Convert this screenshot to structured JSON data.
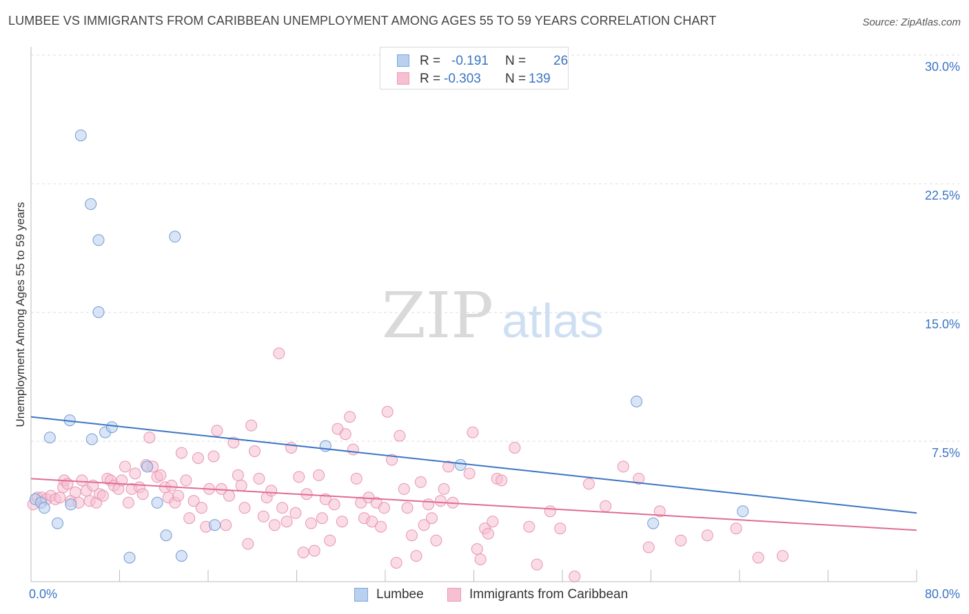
{
  "title": "LUMBEE VS IMMIGRANTS FROM CARIBBEAN UNEMPLOYMENT AMONG AGES 55 TO 59 YEARS CORRELATION CHART",
  "source": "Source: ZipAtlas.com",
  "watermark": {
    "part1": "ZIP",
    "part2": "atlas"
  },
  "legend": {
    "rows": [
      {
        "r_label": "R =",
        "r_value": "-0.191",
        "n_label": "N =",
        "n_value": "26"
      },
      {
        "r_label": "R =",
        "r_value": "-0.303",
        "n_label": "N =",
        "n_value": "139"
      }
    ]
  },
  "colors": {
    "blue": "#3a74c4",
    "blue_fill": "#b9d0ef",
    "pink": "#e06b94",
    "pink_fill": "#f6c0d2",
    "grid": "#dddddd"
  },
  "chart_data": {
    "type": "scatter",
    "xlabel": "",
    "ylabel": "Unemployment Among Ages 55 to 59 years",
    "xlim": [
      0,
      80
    ],
    "ylim": [
      0,
      30
    ],
    "x_tick_labels": [
      "0.0%",
      "80.0%"
    ],
    "y_ticks": [
      7.5,
      15.0,
      22.5,
      30.0
    ],
    "y_tick_labels": [
      "7.5%",
      "15.0%",
      "22.5%",
      "30.0%"
    ],
    "grid": true,
    "series": [
      {
        "name": "Lumbee",
        "color": "#3a74c4",
        "trend": {
          "x": [
            0,
            80
          ],
          "y": [
            9.6,
            4.0
          ]
        },
        "points": [
          [
            0.4,
            4.8
          ],
          [
            0.9,
            4.6
          ],
          [
            1.2,
            4.3
          ],
          [
            1.7,
            8.4
          ],
          [
            2.4,
            3.4
          ],
          [
            3.5,
            9.4
          ],
          [
            3.6,
            4.5
          ],
          [
            4.5,
            26.0
          ],
          [
            5.4,
            22.0
          ],
          [
            5.5,
            8.3
          ],
          [
            6.1,
            19.9
          ],
          [
            6.1,
            15.7
          ],
          [
            6.7,
            8.7
          ],
          [
            7.3,
            9.0
          ],
          [
            8.9,
            1.4
          ],
          [
            10.5,
            6.7
          ],
          [
            11.4,
            4.6
          ],
          [
            12.2,
            2.7
          ],
          [
            13.0,
            20.1
          ],
          [
            13.6,
            1.5
          ],
          [
            16.6,
            3.3
          ],
          [
            26.6,
            7.9
          ],
          [
            38.8,
            6.8
          ],
          [
            54.7,
            10.5
          ],
          [
            56.2,
            3.4
          ],
          [
            64.3,
            4.1
          ]
        ]
      },
      {
        "name": "Immigrants from Caribbean",
        "color": "#e06b94",
        "trend": {
          "x": [
            0,
            80
          ],
          "y": [
            6.0,
            3.0
          ]
        },
        "points": [
          [
            0.2,
            4.5
          ],
          [
            0.6,
            4.9
          ],
          [
            1.0,
            4.9
          ],
          [
            1.4,
            4.8
          ],
          [
            1.8,
            5.0
          ],
          [
            2.2,
            4.8
          ],
          [
            2.6,
            4.9
          ],
          [
            2.9,
            5.5
          ],
          [
            3.0,
            5.9
          ],
          [
            3.3,
            5.7
          ],
          [
            3.6,
            4.7
          ],
          [
            4.0,
            5.2
          ],
          [
            4.3,
            4.6
          ],
          [
            4.6,
            5.9
          ],
          [
            5.0,
            5.3
          ],
          [
            5.3,
            4.7
          ],
          [
            5.6,
            5.6
          ],
          [
            5.9,
            4.6
          ],
          [
            6.2,
            5.1
          ],
          [
            6.5,
            5.0
          ],
          [
            6.9,
            6.0
          ],
          [
            7.2,
            5.9
          ],
          [
            7.5,
            5.6
          ],
          [
            7.9,
            5.4
          ],
          [
            8.2,
            5.9
          ],
          [
            8.5,
            6.7
          ],
          [
            8.8,
            4.6
          ],
          [
            9.1,
            5.4
          ],
          [
            9.4,
            6.3
          ],
          [
            9.8,
            5.5
          ],
          [
            10.1,
            5.1
          ],
          [
            10.4,
            6.8
          ],
          [
            10.7,
            8.4
          ],
          [
            11.0,
            6.7
          ],
          [
            11.4,
            6.1
          ],
          [
            11.7,
            6.2
          ],
          [
            12.1,
            5.5
          ],
          [
            12.4,
            4.9
          ],
          [
            12.7,
            5.6
          ],
          [
            13.0,
            4.6
          ],
          [
            13.3,
            5.0
          ],
          [
            13.6,
            7.5
          ],
          [
            14.0,
            5.9
          ],
          [
            14.3,
            3.7
          ],
          [
            14.7,
            4.7
          ],
          [
            15.1,
            7.2
          ],
          [
            15.4,
            4.3
          ],
          [
            15.8,
            3.2
          ],
          [
            16.1,
            5.4
          ],
          [
            16.5,
            7.3
          ],
          [
            16.8,
            8.8
          ],
          [
            17.2,
            5.4
          ],
          [
            17.6,
            3.3
          ],
          [
            17.9,
            5.0
          ],
          [
            18.3,
            8.1
          ],
          [
            18.7,
            6.2
          ],
          [
            19.0,
            5.6
          ],
          [
            19.3,
            4.3
          ],
          [
            19.6,
            2.2
          ],
          [
            19.9,
            9.1
          ],
          [
            20.2,
            7.6
          ],
          [
            20.6,
            6.0
          ],
          [
            21.0,
            3.8
          ],
          [
            21.3,
            4.9
          ],
          [
            21.7,
            5.3
          ],
          [
            22.0,
            3.3
          ],
          [
            22.4,
            13.3
          ],
          [
            22.7,
            4.3
          ],
          [
            23.1,
            3.5
          ],
          [
            23.5,
            7.8
          ],
          [
            23.9,
            4.0
          ],
          [
            24.2,
            6.1
          ],
          [
            24.6,
            1.7
          ],
          [
            24.9,
            5.1
          ],
          [
            25.3,
            3.4
          ],
          [
            25.6,
            1.8
          ],
          [
            26.0,
            6.2
          ],
          [
            26.3,
            3.7
          ],
          [
            26.6,
            4.8
          ],
          [
            27.0,
            2.4
          ],
          [
            27.4,
            4.5
          ],
          [
            27.7,
            8.9
          ],
          [
            28.1,
            3.5
          ],
          [
            28.4,
            8.6
          ],
          [
            28.8,
            9.6
          ],
          [
            29.1,
            7.7
          ],
          [
            29.4,
            6.0
          ],
          [
            29.8,
            4.6
          ],
          [
            30.1,
            3.7
          ],
          [
            30.5,
            4.9
          ],
          [
            30.8,
            3.5
          ],
          [
            31.2,
            4.6
          ],
          [
            31.6,
            3.2
          ],
          [
            31.9,
            4.3
          ],
          [
            32.2,
            9.9
          ],
          [
            32.6,
            7.1
          ],
          [
            33.0,
            1.1
          ],
          [
            33.3,
            8.5
          ],
          [
            33.7,
            5.4
          ],
          [
            34.0,
            4.3
          ],
          [
            34.4,
            2.7
          ],
          [
            34.8,
            1.5
          ],
          [
            35.2,
            5.8
          ],
          [
            35.5,
            3.3
          ],
          [
            35.9,
            4.5
          ],
          [
            36.2,
            3.7
          ],
          [
            36.6,
            2.4
          ],
          [
            37.0,
            4.7
          ],
          [
            37.3,
            5.4
          ],
          [
            37.7,
            6.7
          ],
          [
            38.1,
            4.6
          ],
          [
            39.6,
            6.3
          ],
          [
            39.9,
            8.7
          ],
          [
            40.3,
            1.9
          ],
          [
            40.6,
            1.3
          ],
          [
            41.0,
            3.1
          ],
          [
            41.3,
            2.8
          ],
          [
            41.7,
            3.5
          ],
          [
            42.1,
            6.0
          ],
          [
            42.5,
            5.9
          ],
          [
            43.7,
            7.8
          ],
          [
            45.0,
            3.2
          ],
          [
            45.7,
            1.0
          ],
          [
            46.9,
            4.1
          ],
          [
            47.8,
            3.1
          ],
          [
            49.1,
            0.3
          ],
          [
            50.4,
            5.7
          ],
          [
            51.9,
            4.4
          ],
          [
            53.5,
            6.7
          ],
          [
            54.9,
            6.0
          ],
          [
            55.8,
            2.0
          ],
          [
            56.8,
            4.1
          ],
          [
            58.7,
            2.4
          ],
          [
            61.1,
            2.7
          ],
          [
            63.7,
            3.1
          ],
          [
            65.7,
            1.4
          ],
          [
            67.9,
            1.5
          ]
        ]
      }
    ]
  },
  "bottom_legend": {
    "items": [
      "Lumbee",
      "Immigrants from Caribbean"
    ]
  }
}
